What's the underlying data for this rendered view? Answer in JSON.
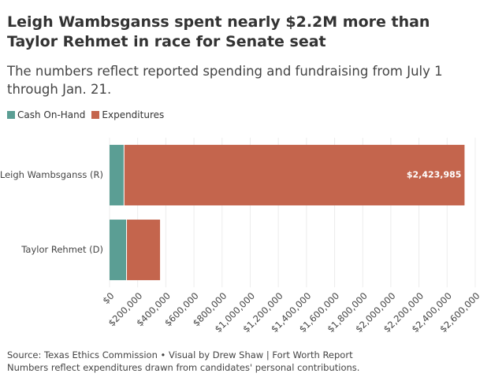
{
  "chart_data": {
    "type": "stacked_barh",
    "title": "Leigh Wambsganss spent nearly $2.2M more than Taylor Rehmet in race for Senate seat",
    "subtitle": "The numbers reflect reported spending and fundraising from July 1 through Jan. 21.",
    "categories": [
      "Leigh Wambsganss (R)",
      "Taylor Rehmet (D)"
    ],
    "series": [
      {
        "name": "Cash On-Hand",
        "color": "#5b9e94",
        "values": [
          100000,
          118000
        ]
      },
      {
        "name": "Expenditures",
        "color": "#c4654d",
        "values": [
          2423985,
          241000
        ],
        "value_labels": [
          "$2,423,985",
          null
        ]
      }
    ],
    "xlim": [
      0,
      2600000
    ],
    "xticks": [
      {
        "value": 0,
        "label": "$0"
      },
      {
        "value": 200000,
        "label": "$200,000"
      },
      {
        "value": 400000,
        "label": "$400,000"
      },
      {
        "value": 600000,
        "label": "$600,000"
      },
      {
        "value": 800000,
        "label": "$800,000"
      },
      {
        "value": 1000000,
        "label": "$1,000,000"
      },
      {
        "value": 1200000,
        "label": "$1,200,000"
      },
      {
        "value": 1400000,
        "label": "$1,400,000"
      },
      {
        "value": 1600000,
        "label": "$1,600,000"
      },
      {
        "value": 1800000,
        "label": "$1,800,000"
      },
      {
        "value": 2000000,
        "label": "$2,000,000"
      },
      {
        "value": 2200000,
        "label": "$2,200,000"
      },
      {
        "value": 2400000,
        "label": "$2,400,000"
      },
      {
        "value": 2600000,
        "label": "$2,600,000"
      }
    ],
    "grid": true,
    "notes": [
      "Source: Texas Ethics Commission • Visual by Drew Shaw | Fort Worth Report",
      "Numbers reflect expenditures drawn from candidates' personal contributions."
    ]
  }
}
